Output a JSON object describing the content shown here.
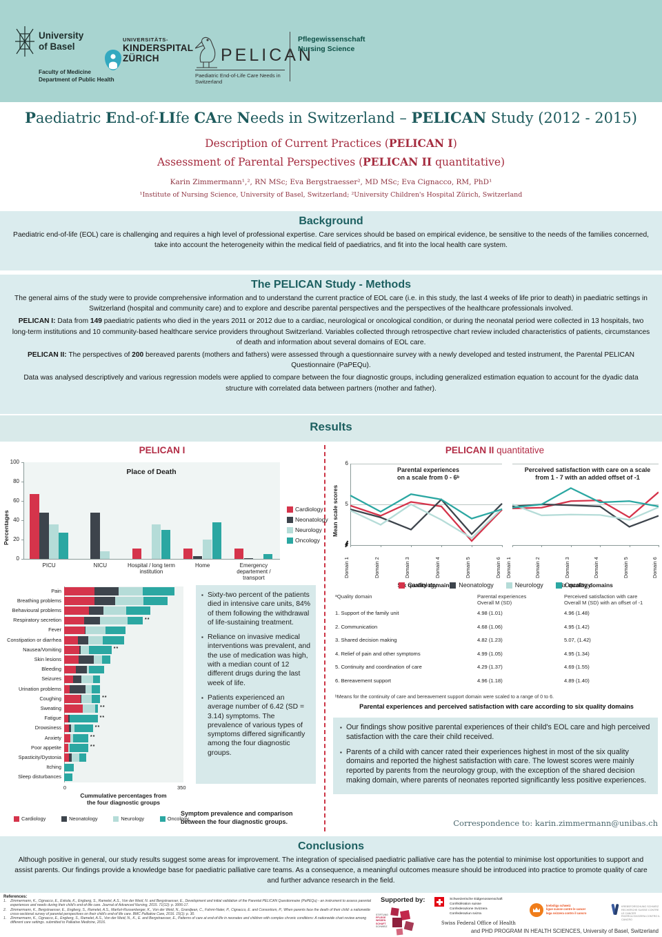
{
  "palette": {
    "header_band": "#a8d4d0",
    "section_box": "#dbecee",
    "teal_heading": "#1c5f60",
    "crimson": "#b22c45",
    "cardiology": "#d5344b",
    "neonatology": "#3d444c",
    "neurology": "#b5dcd8",
    "oncology": "#2ba7a2"
  },
  "header": {
    "unibas": {
      "line1": "University",
      "line2": "of Basel",
      "sub1": "Faculty of Medicine",
      "sub2": "Department of Public Health"
    },
    "kispi": {
      "line1": "UNIVERSITÄTS-",
      "line2": "KINDERSPITAL",
      "line3": "ZÜRICH"
    },
    "pelican": {
      "name": "PELICAN",
      "tagline": "Paediatric End-of-Life Care Needs in Switzerland"
    },
    "right": {
      "line1": "Pflegewissenschaft",
      "line2": "Nursing Science"
    }
  },
  "title": {
    "main_segments": [
      [
        "P",
        1
      ],
      [
        "aediatric ",
        0
      ],
      [
        "E",
        1
      ],
      [
        "nd-of-",
        0
      ],
      [
        "LI",
        1
      ],
      [
        "fe ",
        0
      ],
      [
        "CA",
        1
      ],
      [
        "re ",
        0
      ],
      [
        "N",
        1
      ],
      [
        "eeds in Switzerland – ",
        0
      ],
      [
        "PELICAN",
        1
      ],
      [
        " Study (2012 - 2015)",
        0
      ]
    ],
    "sub1_segments": [
      [
        "Description of Current Practices (",
        0
      ],
      [
        "PELICAN I",
        1
      ],
      [
        ")",
        0
      ]
    ],
    "sub2_segments": [
      [
        "Assessment of Parental Perspectives (",
        0
      ],
      [
        "PELICAN II",
        1
      ],
      [
        " quantitative)",
        0
      ]
    ],
    "authors": "Karin Zimmermann¹,², RN MSc; Eva Bergstraesser², MD MSc; Eva Cignacco, RM, PhD¹",
    "affiliations": "¹Institute of Nursing Science, University of Basel, Switzerland; ²University Children's Hospital Zürich, Switzerland"
  },
  "background": {
    "heading": "Background",
    "text": "Paediatric end-of-life (EOL) care is challenging and requires a high level of professional expertise. Care services should be based on empirical evidence, be sensitive to the needs of the families concerned, take into account the heterogeneity within the medical field of paediatrics, and fit into the local health care system."
  },
  "methods": {
    "heading": "The PELICAN Study - Methods",
    "paragraphs": [
      [
        [
          "The general aims of the study were to provide comprehensive information and to understand the current practice of EOL care (i.e. in this study, the last 4 weeks of life prior to death) in paediatric settings in Switzerland (hospital and community care) and to explore and describe parental perspectives and the perspectives of the healthcare professionals involved.",
          0
        ]
      ],
      [
        [
          "PELICAN I: ",
          1
        ],
        [
          "Data from ",
          0
        ],
        [
          "149",
          1
        ],
        [
          " paediatric patients who died in the years 2011 or 2012 due to a cardiac, neurological or oncological condition, or during the neonatal period were collected in 13 hospitals, two long-term institutions and 10 community-based healthcare service providers throughout Switzerland. Variables collected through retrospective chart review included characteristics of patients, circumstances of death and information about several domains of EOL care.",
          0
        ]
      ],
      [
        [
          "PELICAN II: ",
          1
        ],
        [
          "The perspectives of ",
          0
        ],
        [
          "200",
          1
        ],
        [
          " bereaved parents (mothers and fathers) were assessed through a questionnaire survey with a newly developed and tested instrument, the Parental PELICAN Questionnaire (PaPEQu).",
          0
        ]
      ],
      [
        [
          "Data was analysed descriptively and  various regression models were applied to compare between the four diagnostic groups, including generalized estimation equation to account for the dyadic data structure with correlated data between partners (mother and father).",
          0
        ]
      ]
    ]
  },
  "results_heading": "Results",
  "pelican1_heading": "PELICAN I",
  "pelican2_heading_segments": [
    [
      "PELICAN II",
      1
    ],
    [
      " quantitative",
      0
    ]
  ],
  "chart_data": [
    {
      "id": "place_of_death",
      "type": "bar",
      "title": "Place of Death",
      "ylabel": "Percentages",
      "ylim": [
        0,
        100
      ],
      "yticks": [
        0,
        20,
        40,
        60,
        80,
        100
      ],
      "grid": false,
      "legend_position": "right",
      "categories": [
        "PICU",
        "NICU",
        "Hospital / long term institution",
        "Home",
        "Emergency departement / transport"
      ],
      "series": [
        {
          "name": "Cardiology",
          "color": "#d5344b",
          "values": [
            67,
            0,
            11,
            11,
            11
          ]
        },
        {
          "name": "Neonatology",
          "color": "#3d444c",
          "values": [
            48,
            48,
            0,
            3,
            1
          ]
        },
        {
          "name": "Neurology",
          "color": "#b5dcd8",
          "values": [
            36,
            8,
            36,
            20,
            0
          ]
        },
        {
          "name": "Oncology",
          "color": "#2ba7a2",
          "values": [
            27,
            0,
            30,
            38,
            5
          ]
        }
      ]
    },
    {
      "id": "symptom_prevalence",
      "type": "stacked-bar-horizontal",
      "xlabel": [
        "Cummulative percentages from",
        "the four diagnostic groups"
      ],
      "xlim": [
        0,
        350
      ],
      "xticks": [
        0,
        350
      ],
      "legend_position": "bottom",
      "categories": [
        "Pain",
        "Breathing problems",
        "Behavioural problems",
        "Respiratory secretion",
        "Fever",
        "Constipation or diarrhea",
        "Nausea/Vomiting",
        "Skin lesions",
        "Bleeding",
        "Seizures",
        "Urination problems",
        "Coughing",
        "Sweating",
        "Fatigue",
        "Drowsiness",
        "Anxiety",
        "Poor appetite",
        "Spasticity/Dystonia",
        "Itching",
        "Sleep disturbances"
      ],
      "significance": [
        "",
        "",
        "",
        "**",
        "",
        "",
        "**",
        "",
        "",
        "",
        "",
        "**",
        "**",
        "**",
        "**",
        "**",
        "**",
        "",
        "",
        ""
      ],
      "series": [
        {
          "name": "Cardiology",
          "color": "#d5344b",
          "values": [
            90,
            90,
            73,
            59,
            61,
            41,
            45,
            43,
            35,
            27,
            16,
            49,
            55,
            12,
            14,
            18,
            12,
            14,
            0,
            0
          ]
        },
        {
          "name": "Neonatology",
          "color": "#3d444c",
          "values": [
            71,
            61,
            43,
            47,
            3,
            31,
            4,
            45,
            33,
            24,
            47,
            2,
            0,
            4,
            6,
            0,
            0,
            8,
            0,
            0
          ]
        },
        {
          "name": "Neurology",
          "color": "#b5dcd8",
          "values": [
            71,
            83,
            67,
            81,
            59,
            41,
            24,
            24,
            6,
            35,
            18,
            31,
            37,
            0,
            10,
            8,
            4,
            22,
            0,
            0
          ]
        },
        {
          "name": "Oncology",
          "color": "#2ba7a2",
          "values": [
            94,
            71,
            71,
            45,
            59,
            65,
            67,
            24,
            45,
            20,
            24,
            24,
            8,
            83,
            55,
            45,
            55,
            22,
            28,
            24
          ]
        }
      ]
    },
    {
      "id": "parental_experiences",
      "type": "line",
      "title": [
        "Parental experiences",
        "on a scale from 0 - 6ᵇ"
      ],
      "ylabel": "Mean scale scores",
      "ylim": [
        4,
        6
      ],
      "yticks": [
        4,
        5,
        6
      ],
      "xlabel": "Six quality domainsᵃ",
      "x_categories": [
        "Domain 1",
        "Domain 2",
        "Domain 3",
        "Domain 4",
        "Domain 5",
        "Domain 6"
      ],
      "series": [
        {
          "name": "Cardiology",
          "color": "#d5344b",
          "values": [
            4.97,
            4.72,
            5.06,
            4.95,
            4.1,
            4.87
          ]
        },
        {
          "name": "Neonatology",
          "color": "#3d444c",
          "values": [
            4.88,
            4.68,
            4.38,
            5.12,
            4.27,
            5.02
          ]
        },
        {
          "name": "Neurology",
          "color": "#b5dcd8",
          "values": [
            4.85,
            4.5,
            5.0,
            4.62,
            4.17,
            4.9
          ]
        },
        {
          "name": "Oncology",
          "color": "#2ba7a2",
          "values": [
            5.22,
            4.82,
            5.25,
            5.12,
            4.65,
            4.88
          ]
        }
      ]
    },
    {
      "id": "perceived_satisfaction",
      "type": "line",
      "title": [
        "Perceived satisfaction with care on a scale",
        "from 1 - 7 with an added offset of -1"
      ],
      "ylim": [
        4,
        6
      ],
      "xlabel": "Six quality domains",
      "x_categories": [
        "Domain 1",
        "Domain 2",
        "Domain 3",
        "Domain 4",
        "Domain 5",
        "Domain 6"
      ],
      "series": [
        {
          "name": "Cardiology",
          "color": "#d5344b",
          "values": [
            4.9,
            4.92,
            5.08,
            5.1,
            4.68,
            5.3
          ]
        },
        {
          "name": "Neonatology",
          "color": "#3d444c",
          "values": [
            4.95,
            5.0,
            4.98,
            4.95,
            4.45,
            4.72
          ]
        },
        {
          "name": "Neurology",
          "color": "#b5dcd8",
          "values": [
            5.0,
            4.73,
            4.75,
            4.74,
            4.62,
            4.93
          ]
        },
        {
          "name": "Oncology",
          "color": "#2ba7a2",
          "values": [
            4.92,
            5.0,
            5.4,
            5.05,
            5.08,
            4.95
          ]
        }
      ]
    }
  ],
  "findings_left": [
    "Sixty-two percent of the patients died in intensive care units, 84% of them following the withdrawal of life-sustaining treatment.",
    "Reliance on invasive medical interventions was prevalent, and the use of medication was high, with a median count of 12 different drugs during the last week of life.",
    "Patients experienced an average number of 6.42 (SD = 3.14) symptoms. The prevalence of various types of symptoms differed significantly among the four diagnostic groups."
  ],
  "symptom_caption": "Symptom prevalence and comparison between the four diagnostic groups.",
  "table": {
    "headers": [
      [
        "ᵃQuality domain"
      ],
      [
        "Parental experiences",
        "Overall M (SD)"
      ],
      [
        "Perceived satisfaction with care",
        "Overall M (SD) with an offset of -1"
      ]
    ],
    "rows": [
      [
        "1. Support of the family unit",
        "4.98 (1.01)",
        "4.96 (1.48)"
      ],
      [
        "2. Communication",
        "4.68 (1.06)",
        "4.95 (1.42)"
      ],
      [
        "3. Shared decision making",
        "4.82 (1.23)",
        "5.07, (1.42)"
      ],
      [
        "4. Relief of pain and other symptoms",
        "4.99 (1.05)",
        "4.95 (1.34)"
      ],
      [
        "5. Continuity and coordination of care",
        "4.29 (1.37)",
        "4.69 (1.55)"
      ],
      [
        "6. Bereavement support",
        "4.96 (1.18)",
        "4.89 (1.40)"
      ]
    ],
    "footnote": "ᵇMeans for the continuity of care and bereavement support domain were scaled to a range of 0 to 6.",
    "caption": "Parental experiences and perceived satisfaction with care according to six quality domains"
  },
  "findings_right": [
    "Our findings show positive parental experiences of their child's EOL care and high perceived satisfaction with the care their child received.",
    "Parents of a child with cancer rated their experiences highest in most of the six quality domains and reported the highest satisfaction with care. The lowest scores were mainly reported by parents from the neurology group, with the exception of the shared decision making domain, where parents of neonates reported significantly less positive experiences."
  ],
  "correspondence": "Correspondence to: karin.zimmermann@unibas.ch",
  "conclusions": {
    "heading": "Conclusions",
    "text": "Although positive in general, our study results suggest some areas for improvement. The integration of specialised paediatric palliative care has the potential to minimise lost opportunities to support and assist parents. Our findings provide a knowledge base for paediatric palliative care teams. As a consequence, a meaningful outcomes measure should be introduced into practice to promote quality of care and further advance research in the field."
  },
  "references": {
    "heading": "References:",
    "numbers": [
      "1.",
      "2.",
      "1."
    ],
    "items": [
      "Zimmermann, K., Cignacco, E., Eskola, K., Engberg, S., Ramelet, A.S., Von der Weid, N. and Bergstraesser, E., Development and initial validation of the Parental PELICAN Questionnaire (PaPEQu) - an instrument to assess parental experiences and needs during their child's end-of-life care. Journal of Advanced Nursing, 2015. 71(12): p. 3006-17.",
      "Zimmermann, K., Bergstraesser, E., Engberg, S., Ramelet, A.S., Marfurt-Russenberger, K., Von der Weid, N., Grandjean, C., Fahrni-Nater, P., Cignacco, E. and Consortium, P., When parents face the death of their child: a nationwide cross-sectional survey of parental perspectives on their child's end-of life care. BMC Palliative Care, 2016. 15(1): p. 30.",
      "Zimmermann, K., Cignacco, E., Engberg, S., Ramelet, A.S., Von der Weid, N., K., E. and Bergstraesser, E., Patterns of care at end-of-life in neonates and children with complex chronic conditions: A nationwide chart review among different care settings. submitted to Palliative Medicine, 2016."
    ]
  },
  "footer": {
    "supported_by": "Supported by:",
    "swiss": [
      "Schweizerische Eidgenossenschaft",
      "Confédération suisse",
      "Confederazione Svizzera",
      "Confederaziun svizra"
    ],
    "swiss_office": "Swiss Federal Office of Health",
    "stiftung": [
      "STIFTUNG",
      "PFLEGE",
      "WISSEN",
      "SCHAFT",
      "SCHWEIZ"
    ],
    "krebsliga": [
      "krebsliga schweiz",
      "ligue suisse contre le cancer",
      "lega svizzera contro il cancro"
    ],
    "krebsforschung": [
      "KREBSFORSCHUNG SCHWEIZ",
      "RECHERCHE SUISSE CONTRE LE CANCER",
      "RICERCA SVIZZERA CONTRO IL CANCRO"
    ],
    "phd": "and PHD PROGRAM IN HEALTH SCIENCES, University of Basel, Switzerland"
  }
}
